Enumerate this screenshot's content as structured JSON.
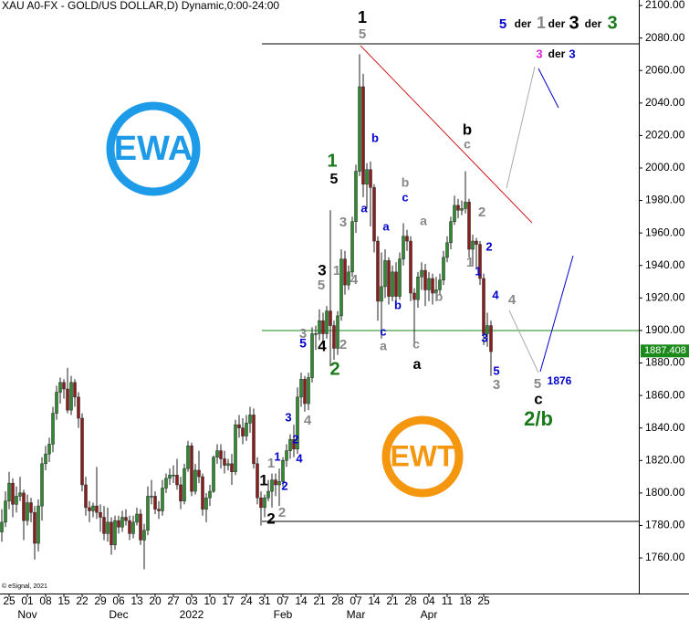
{
  "chart_data": {
    "type": "candlestick",
    "title": "XAU A0-FX - GOLD/US DOLLAR,D) Dynamic,0:00-24:00",
    "copyright": "© eSignal, 2021",
    "up_color": "#2f8a2f",
    "down_color": "#8b1c1c",
    "xlim": [
      -0.5,
      174.5
    ],
    "ylim": [
      1738.1,
      2103.4
    ],
    "yticks": [
      {
        "value": 2100,
        "label": "2100.00"
      },
      {
        "value": 2080,
        "label": "2080.00"
      },
      {
        "value": 2060,
        "label": "2060.00"
      },
      {
        "value": 2040,
        "label": "2040.00"
      },
      {
        "value": 2020,
        "label": "2020.00"
      },
      {
        "value": 2000,
        "label": "2000.00"
      },
      {
        "value": 1980,
        "label": "1980.00"
      },
      {
        "value": 1960,
        "label": "1960.00"
      },
      {
        "value": 1940,
        "label": "1940.00"
      },
      {
        "value": 1920,
        "label": "1920.00"
      },
      {
        "value": 1900,
        "label": "1900.00"
      },
      {
        "value": 1880,
        "label": "1880.00"
      },
      {
        "value": 1860,
        "label": "1860.00"
      },
      {
        "value": 1840,
        "label": "1840.00"
      },
      {
        "value": 1820,
        "label": "1820.00"
      },
      {
        "value": 1800,
        "label": "1800.00"
      },
      {
        "value": 1780,
        "label": "1780.00"
      },
      {
        "value": 1760,
        "label": "1760.00"
      }
    ],
    "xticks": [
      {
        "value": 2,
        "label": "25"
      },
      {
        "value": 7,
        "label": "01"
      },
      {
        "value": 12,
        "label": "08"
      },
      {
        "value": 17,
        "label": "15"
      },
      {
        "value": 22,
        "label": "22"
      },
      {
        "value": 27,
        "label": "29"
      },
      {
        "value": 32,
        "label": "06"
      },
      {
        "value": 37,
        "label": "13"
      },
      {
        "value": 42,
        "label": "20"
      },
      {
        "value": 47,
        "label": "27"
      },
      {
        "value": 52,
        "label": "03"
      },
      {
        "value": 57,
        "label": "10"
      },
      {
        "value": 62,
        "label": "17"
      },
      {
        "value": 67,
        "label": "24"
      },
      {
        "value": 72,
        "label": "31"
      },
      {
        "value": 77,
        "label": "07"
      },
      {
        "value": 82,
        "label": "14"
      },
      {
        "value": 87,
        "label": "21"
      },
      {
        "value": 92,
        "label": "28"
      },
      {
        "value": 97,
        "label": "07"
      },
      {
        "value": 102,
        "label": "14"
      },
      {
        "value": 107,
        "label": "21"
      },
      {
        "value": 112,
        "label": "28"
      },
      {
        "value": 117,
        "label": "04"
      },
      {
        "value": 122,
        "label": "11"
      },
      {
        "value": 127,
        "label": "18"
      },
      {
        "value": 132,
        "label": "25"
      }
    ],
    "month_ticks": [
      {
        "value": 7,
        "label": "Nov"
      },
      {
        "value": 32,
        "label": "Dec"
      },
      {
        "value": 52,
        "label": "2022"
      },
      {
        "value": 77,
        "label": "Feb"
      },
      {
        "value": 97,
        "label": "Mar"
      },
      {
        "value": 117,
        "label": "Apr"
      }
    ],
    "last_price": 1887.408,
    "open": [
      1776,
      1782,
      1795,
      1806,
      1793,
      1798,
      1800,
      1783,
      1794,
      1788,
      1769,
      1792,
      1818,
      1824,
      1830,
      1849,
      1862,
      1868,
      1864,
      1851,
      1868,
      1859,
      1846,
      1805,
      1791,
      1789,
      1792,
      1788,
      1785,
      1775,
      1782,
      1768,
      1783,
      1779,
      1785,
      1783,
      1775,
      1782,
      1787,
      1771,
      1777,
      1798,
      1798,
      1790,
      1789,
      1803,
      1809,
      1811,
      1811,
      1805,
      1795,
      1815,
      1829,
      1801,
      1814,
      1810,
      1790,
      1797,
      1801,
      1822,
      1826,
      1821,
      1817,
      1818,
      1813,
      1842,
      1840,
      1835,
      1843,
      1848,
      1818,
      1797,
      1791,
      1797,
      1801,
      1808,
      1805,
      1807,
      1820,
      1826,
      1833,
      1827,
      1859,
      1870,
      1855,
      1871,
      1898,
      1898,
      1906,
      1898,
      1912,
      1903,
      1889,
      1909,
      1944,
      1928,
      1936,
      1967,
      1998,
      2050,
      1990,
      1999,
      1988,
      1955,
      1918,
      1927,
      1943,
      1921,
      1936,
      1921,
      1944,
      1958,
      1955,
      1923,
      1919,
      1933,
      1937,
      1925,
      1932,
      1923,
      1925,
      1931,
      1945,
      1954,
      1967,
      1977,
      1974,
      1975,
      1979,
      1950,
      1955,
      1953,
      1932,
      1898,
      1903
    ],
    "high": [
      1790,
      1801,
      1813,
      1809,
      1804,
      1810,
      1802,
      1799,
      1797,
      1792,
      1796,
      1822,
      1829,
      1834,
      1853,
      1866,
      1871,
      1870,
      1877,
      1872,
      1870,
      1862,
      1849,
      1810,
      1795,
      1794,
      1816,
      1793,
      1792,
      1791,
      1785,
      1786,
      1786,
      1789,
      1790,
      1786,
      1786,
      1791,
      1790,
      1781,
      1804,
      1808,
      1801,
      1795,
      1808,
      1812,
      1815,
      1817,
      1821,
      1810,
      1818,
      1832,
      1831,
      1818,
      1826,
      1812,
      1800,
      1805,
      1823,
      1830,
      1830,
      1826,
      1821,
      1824,
      1845,
      1848,
      1846,
      1848,
      1853,
      1852,
      1822,
      1801,
      1799,
      1808,
      1812,
      1812,
      1815,
      1822,
      1830,
      1836,
      1842,
      1865,
      1874,
      1872,
      1874,
      1902,
      1903,
      1913,
      1911,
      1915,
      1974,
      1906,
      1912,
      1950,
      1949,
      1940,
      1970,
      2002,
      2070,
      2058,
      2003,
      2004,
      1990,
      1958,
      1948,
      1950,
      1945,
      1940,
      1942,
      1948,
      1966,
      1962,
      1958,
      1926,
      1936,
      1942,
      1941,
      1936,
      1935,
      1933,
      1935,
      1949,
      1958,
      1970,
      1983,
      1981,
      1980,
      1998,
      1981,
      1959,
      1957,
      1955,
      1935,
      1911,
      1906
    ],
    "low": [
      1770,
      1779,
      1790,
      1785,
      1788,
      1795,
      1771,
      1780,
      1782,
      1759,
      1764,
      1783,
      1814,
      1819,
      1825,
      1845,
      1855,
      1858,
      1849,
      1848,
      1853,
      1840,
      1801,
      1786,
      1782,
      1785,
      1784,
      1776,
      1771,
      1770,
      1762,
      1765,
      1775,
      1776,
      1780,
      1771,
      1772,
      1780,
      1768,
      1753,
      1774,
      1793,
      1787,
      1784,
      1786,
      1800,
      1805,
      1806,
      1802,
      1790,
      1793,
      1813,
      1798,
      1799,
      1806,
      1786,
      1782,
      1792,
      1800,
      1818,
      1815,
      1812,
      1814,
      1805,
      1811,
      1834,
      1830,
      1832,
      1837,
      1815,
      1793,
      1780,
      1785,
      1795,
      1791,
      1798,
      1792,
      1804,
      1816,
      1821,
      1822,
      1824,
      1853,
      1850,
      1851,
      1868,
      1888,
      1894,
      1891,
      1895,
      1878,
      1882,
      1885,
      1906,
      1922,
      1925,
      1933,
      1960,
      1995,
      1982,
      1975,
      1964,
      1948,
      1906,
      1895,
      1920,
      1916,
      1918,
      1915,
      1919,
      1940,
      1949,
      1918,
      1890,
      1914,
      1925,
      1915,
      1918,
      1916,
      1918,
      1922,
      1928,
      1942,
      1950,
      1965,
      1969,
      1971,
      1972,
      1945,
      1940,
      1938,
      1928,
      1891,
      1890,
      1872
    ],
    "close": [
      1782,
      1795,
      1806,
      1793,
      1798,
      1800,
      1783,
      1794,
      1788,
      1769,
      1792,
      1818,
      1824,
      1830,
      1849,
      1862,
      1868,
      1864,
      1851,
      1868,
      1859,
      1846,
      1805,
      1791,
      1789,
      1792,
      1788,
      1785,
      1775,
      1782,
      1768,
      1783,
      1779,
      1785,
      1783,
      1775,
      1782,
      1787,
      1771,
      1777,
      1798,
      1798,
      1790,
      1789,
      1803,
      1809,
      1811,
      1811,
      1805,
      1795,
      1815,
      1829,
      1801,
      1814,
      1810,
      1790,
      1797,
      1801,
      1822,
      1826,
      1821,
      1817,
      1818,
      1813,
      1842,
      1840,
      1835,
      1843,
      1848,
      1818,
      1797,
      1791,
      1797,
      1801,
      1808,
      1805,
      1807,
      1820,
      1826,
      1833,
      1827,
      1859,
      1870,
      1855,
      1871,
      1898,
      1898,
      1906,
      1898,
      1912,
      1903,
      1889,
      1909,
      1944,
      1928,
      1936,
      1967,
      1998,
      2050,
      1990,
      1999,
      1988,
      1955,
      1918,
      1927,
      1943,
      1921,
      1936,
      1921,
      1944,
      1958,
      1955,
      1923,
      1919,
      1933,
      1937,
      1925,
      1932,
      1923,
      1925,
      1931,
      1945,
      1954,
      1967,
      1977,
      1974,
      1975,
      1979,
      1950,
      1955,
      1953,
      1932,
      1898,
      1903,
      1887
    ],
    "logos": [
      "EWA",
      "EWT"
    ],
    "annotations": [
      {
        "text": "1",
        "color": "#000"
      },
      {
        "text": "5",
        "color": "#888"
      },
      {
        "text": "1",
        "color": "#1a7a1a"
      },
      {
        "text": "5",
        "color": "#000"
      },
      {
        "text": "3",
        "color": "#888"
      },
      {
        "text": "3",
        "color": "#000"
      },
      {
        "text": "1",
        "color": "#888"
      },
      {
        "text": "4",
        "color": "#888"
      },
      {
        "text": "5",
        "color": "#888"
      },
      {
        "text": "3",
        "color": "#888"
      },
      {
        "text": "5",
        "color": "#0000cc"
      },
      {
        "text": "4",
        "color": "#000"
      },
      {
        "text": "2",
        "color": "#888"
      },
      {
        "text": "2",
        "color": "#1a7a1a"
      },
      {
        "text": "b",
        "color": "#0000cc"
      },
      {
        "text": "a",
        "color": "#0000cc"
      },
      {
        "text": "a",
        "color": "#0000cc"
      },
      {
        "text": "b",
        "color": "#0000cc"
      },
      {
        "text": "c",
        "color": "#0000cc"
      },
      {
        "text": "a",
        "color": "#888"
      },
      {
        "text": "b",
        "color": "#888"
      },
      {
        "text": "c",
        "color": "#0000cc"
      },
      {
        "text": "a",
        "color": "#888"
      },
      {
        "text": "c",
        "color": "#888"
      },
      {
        "text": "a",
        "color": "#000"
      },
      {
        "text": "b",
        "color": "#888"
      },
      {
        "text": "b",
        "color": "#000"
      },
      {
        "text": "c",
        "color": "#888"
      },
      {
        "text": "2",
        "color": "#888"
      },
      {
        "text": "2",
        "color": "#0000cc"
      },
      {
        "text": "1",
        "color": "#888"
      },
      {
        "text": "1",
        "color": "#0000cc"
      },
      {
        "text": "4",
        "color": "#0000cc"
      },
      {
        "text": "4",
        "color": "#888"
      },
      {
        "text": "3",
        "color": "#0000cc"
      },
      {
        "text": "5",
        "color": "#0000cc"
      },
      {
        "text": "3",
        "color": "#888"
      },
      {
        "text": "5",
        "color": "#888"
      },
      {
        "text": "1876",
        "color": "#0000cc"
      },
      {
        "text": "c",
        "color": "#000"
      },
      {
        "text": "2/b",
        "color": "#1a7a1a"
      },
      {
        "text": "3",
        "color": "#0000cc"
      },
      {
        "text": "4",
        "color": "#888"
      },
      {
        "text": "2",
        "color": "#0000cc"
      },
      {
        "text": "1",
        "color": "#0000cc"
      },
      {
        "text": "4",
        "color": "#0000cc"
      },
      {
        "text": "1",
        "color": "#888"
      },
      {
        "text": "2",
        "color": "#0000cc"
      },
      {
        "text": "1",
        "color": "#000"
      },
      {
        "text": "2",
        "color": "#888"
      },
      {
        "text": "2",
        "color": "#000"
      },
      {
        "text": "3",
        "color": "#e020e0"
      },
      {
        "text": "der",
        "color": "#000"
      },
      {
        "text": "3",
        "color": "#0000cc"
      },
      {
        "text": "5",
        "color": "#0000cc"
      },
      {
        "text": "der",
        "color": "#000"
      },
      {
        "text": "1",
        "color": "#888"
      },
      {
        "text": "der",
        "color": "#000"
      },
      {
        "text": "3",
        "color": "#000"
      },
      {
        "text": "der",
        "color": "#000"
      },
      {
        "text": "3",
        "color": "#1a7a1a"
      }
    ]
  }
}
